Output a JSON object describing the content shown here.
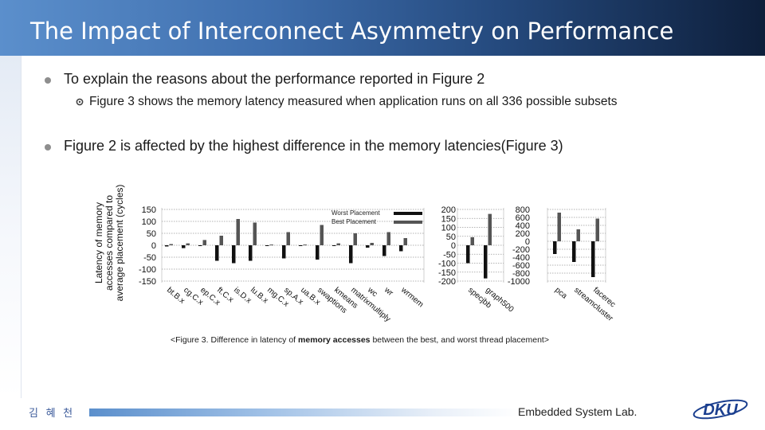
{
  "slide": {
    "title": "The Impact of Interconnect Asymmetry on Performance",
    "bullets": [
      {
        "text": "To explain the reasons about the performance reported in Figure 2",
        "sub": "Figure 3 shows the memory latency measured when application runs on all 336 possible subsets"
      },
      {
        "text": "Figure 2 is affected by the highest difference in the memory latencies(Figure 3)"
      }
    ],
    "caption": {
      "before": "<Figure 3. Difference in latency of ",
      "bold": "memory accesses",
      "after": " between the best, and worst thread placement>"
    },
    "footer": {
      "author": "김 혜 천",
      "lab": "Embedded System Lab.",
      "logo_text": "DKU"
    }
  },
  "colors": {
    "header_start": "#5b8fcc",
    "header_end": "#0e1f3b",
    "best_bar": "#555555",
    "worst_bar": "#111111"
  },
  "chart_data": [
    {
      "type": "bar",
      "ylabel": "Latency of memory accesses compared to average placement (cycles)",
      "yticks": [
        150,
        100,
        50,
        0,
        -50,
        -100,
        -150
      ],
      "ylim": [
        -150,
        150
      ],
      "legend": [
        "Worst Placement",
        "Best Placement"
      ],
      "legend_position": "top-right",
      "categories": [
        "bt.B.x",
        "cg.C.x",
        "ep.C.x",
        "ft.C.x",
        "is.D.x",
        "lu.B.x",
        "mg.C.x",
        "sp.A.x",
        "ua.B.x",
        "swaptions",
        "kmeans",
        "matrixmultiply",
        "wc",
        "wr",
        "wrmem"
      ],
      "series": [
        {
          "name": "Worst Placement",
          "values": [
            -5,
            -12,
            -3,
            -65,
            -75,
            -65,
            -3,
            -55,
            -3,
            -60,
            -3,
            -75,
            -10,
            -45,
            -25
          ]
        },
        {
          "name": "Best Placement",
          "values": [
            5,
            8,
            22,
            40,
            110,
            95,
            3,
            55,
            3,
            85,
            8,
            50,
            10,
            55,
            30
          ]
        }
      ]
    },
    {
      "type": "bar",
      "yticks": [
        200,
        150,
        100,
        50,
        0,
        -50,
        -100,
        -150,
        -200
      ],
      "ylim": [
        -200,
        200
      ],
      "categories": [
        "specjbb",
        "graph500"
      ],
      "series": [
        {
          "name": "Worst Placement",
          "values": [
            -100,
            -185
          ]
        },
        {
          "name": "Best Placement",
          "values": [
            45,
            175
          ]
        }
      ]
    },
    {
      "type": "bar",
      "yticks": [
        800,
        600,
        400,
        200,
        0,
        -200,
        -400,
        -600,
        -800,
        -1000
      ],
      "ylim": [
        -1000,
        800
      ],
      "categories": [
        "pca",
        "streamcluster",
        "facerec"
      ],
      "series": [
        {
          "name": "Worst Placement",
          "values": [
            -320,
            -520,
            -900
          ]
        },
        {
          "name": "Best Placement",
          "values": [
            720,
            300,
            570
          ]
        }
      ]
    }
  ]
}
